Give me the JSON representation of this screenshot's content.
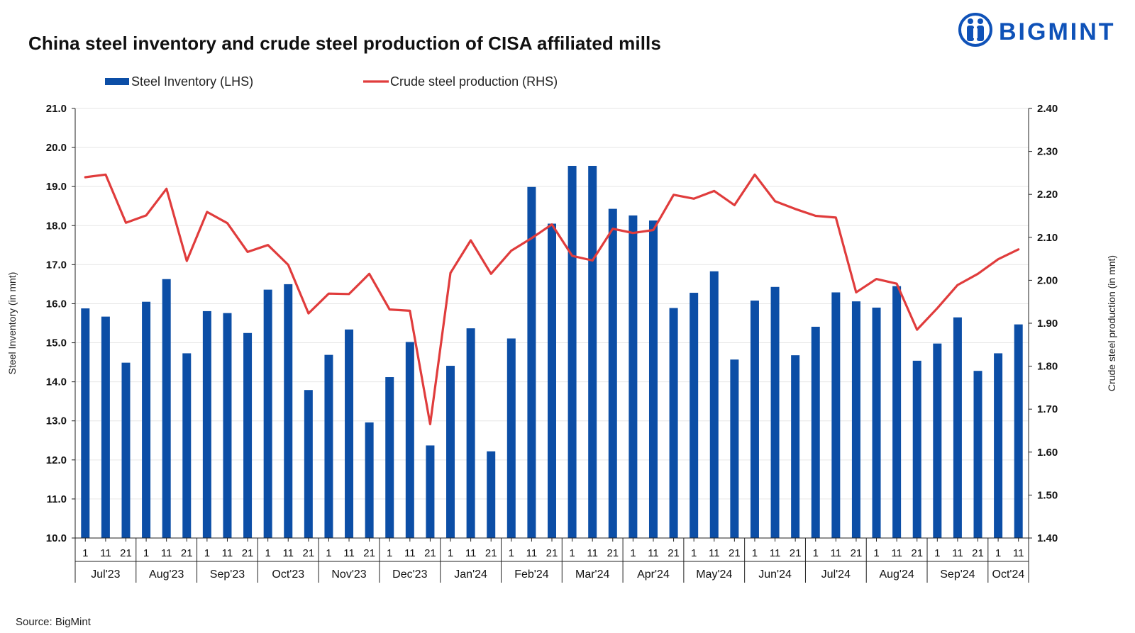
{
  "title": "China steel inventory and crude steel production of CISA affiliated mills",
  "brand": {
    "name": "BIGMINT",
    "color": "#0f52b8",
    "icon": "bigmint-people-icon"
  },
  "source": "Source: BigMint",
  "chart_data": {
    "type": "bar+line",
    "legend": {
      "placement": "top-left",
      "entries": [
        "Steel Inventory (LHS)",
        "Crude steel production (RHS)"
      ]
    },
    "colors": {
      "bars": "#0c4ea6",
      "line": "#e03c3c"
    },
    "ylabel_left": "Steel Inventory (in mnt)",
    "ylabel_right": "Crude steel production (in mnt)",
    "ylim_left": [
      10.0,
      21.0
    ],
    "ylim_right": [
      1.4,
      2.4
    ],
    "yticks_left": [
      "10.0",
      "11.0",
      "12.0",
      "13.0",
      "14.0",
      "15.0",
      "16.0",
      "17.0",
      "18.0",
      "19.0",
      "20.0",
      "21.0"
    ],
    "yticks_right": [
      "1.40",
      "1.50",
      "1.60",
      "1.70",
      "1.80",
      "1.90",
      "2.00",
      "2.10",
      "2.20",
      "2.30",
      "2.40"
    ],
    "grid": true,
    "months": [
      {
        "label": "Jul'23",
        "days": [
          "1",
          "11",
          "21"
        ]
      },
      {
        "label": "Aug'23",
        "days": [
          "1",
          "11",
          "21"
        ]
      },
      {
        "label": "Sep'23",
        "days": [
          "1",
          "11",
          "21"
        ]
      },
      {
        "label": "Oct'23",
        "days": [
          "1",
          "11",
          "21"
        ]
      },
      {
        "label": "Nov'23",
        "days": [
          "1",
          "11",
          "21"
        ]
      },
      {
        "label": "Dec'23",
        "days": [
          "1",
          "11",
          "21"
        ]
      },
      {
        "label": "Jan'24",
        "days": [
          "1",
          "11",
          "21"
        ]
      },
      {
        "label": "Feb'24",
        "days": [
          "1",
          "11",
          "21"
        ]
      },
      {
        "label": "Mar'24",
        "days": [
          "1",
          "11",
          "21"
        ]
      },
      {
        "label": "Apr'24",
        "days": [
          "1",
          "11",
          "21"
        ]
      },
      {
        "label": "May'24",
        "days": [
          "1",
          "11",
          "21"
        ]
      },
      {
        "label": "Jun'24",
        "days": [
          "1",
          "11",
          "21"
        ]
      },
      {
        "label": "Jul'24",
        "days": [
          "1",
          "11",
          "21"
        ]
      },
      {
        "label": "Aug'24",
        "days": [
          "1",
          "11",
          "21"
        ]
      },
      {
        "label": "Sep'24",
        "days": [
          "1",
          "11",
          "21"
        ]
      },
      {
        "label": "Oct'24",
        "days": [
          "1",
          "11"
        ]
      }
    ],
    "series": [
      {
        "name": "Steel Inventory (LHS)",
        "axis": "left",
        "values": [
          15.88,
          15.67,
          14.49,
          16.05,
          16.63,
          14.73,
          15.81,
          15.76,
          15.25,
          16.36,
          16.5,
          13.79,
          14.69,
          15.34,
          12.96,
          14.12,
          15.02,
          12.37,
          14.41,
          15.37,
          12.22,
          15.11,
          18.99,
          18.05,
          19.53,
          19.53,
          18.43,
          18.26,
          18.13,
          15.89,
          16.28,
          16.83,
          14.57,
          16.08,
          16.43,
          14.68,
          15.41,
          16.29,
          16.06,
          15.9,
          16.45,
          14.54,
          14.98,
          15.65,
          14.28,
          14.73,
          15.47
        ]
      },
      {
        "name": "Crude steel production (RHS)",
        "axis": "right",
        "values": [
          2.24,
          2.246,
          2.134,
          2.151,
          2.213,
          2.045,
          2.159,
          2.133,
          2.066,
          2.082,
          2.036,
          1.923,
          1.969,
          1.968,
          2.015,
          1.932,
          1.929,
          1.665,
          2.017,
          2.093,
          2.015,
          2.069,
          2.098,
          2.13,
          2.057,
          2.046,
          2.12,
          2.11,
          2.117,
          2.199,
          2.19,
          2.208,
          2.175,
          2.246,
          2.184,
          2.166,
          2.15,
          2.146,
          1.972,
          2.003,
          1.992,
          1.885,
          1.935,
          1.989,
          2.015,
          2.049,
          2.072
        ]
      }
    ]
  }
}
